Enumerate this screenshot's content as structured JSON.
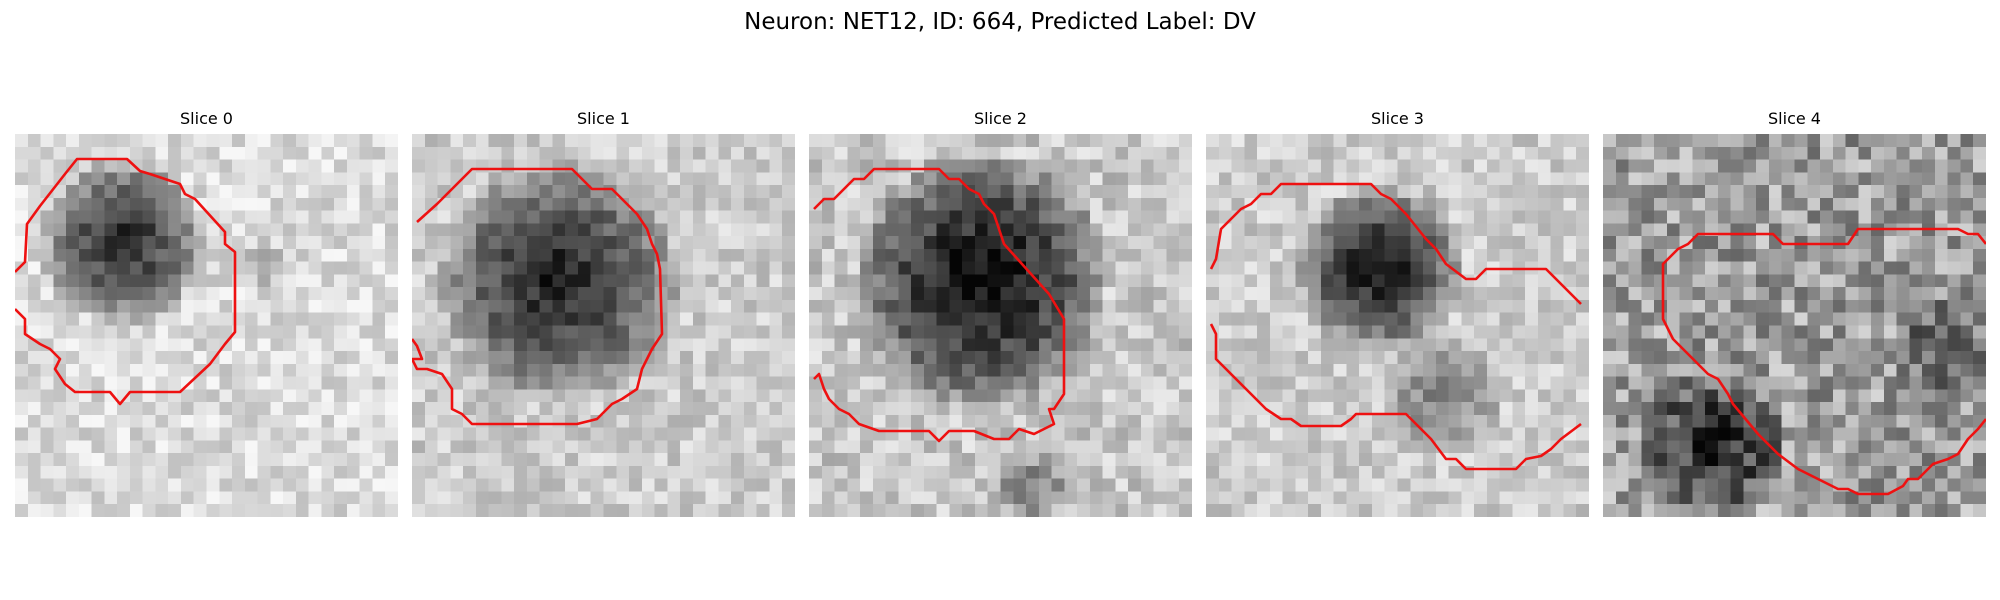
{
  "figure": {
    "title": "Neuron: NET12, ID: 664, Predicted Label: DV",
    "contour_color": "#ee1111"
  },
  "panels": [
    {
      "title": "Slice 0"
    },
    {
      "title": "Slice 1"
    },
    {
      "title": "Slice 2"
    },
    {
      "title": "Slice 3"
    },
    {
      "title": "Slice 4"
    }
  ]
}
